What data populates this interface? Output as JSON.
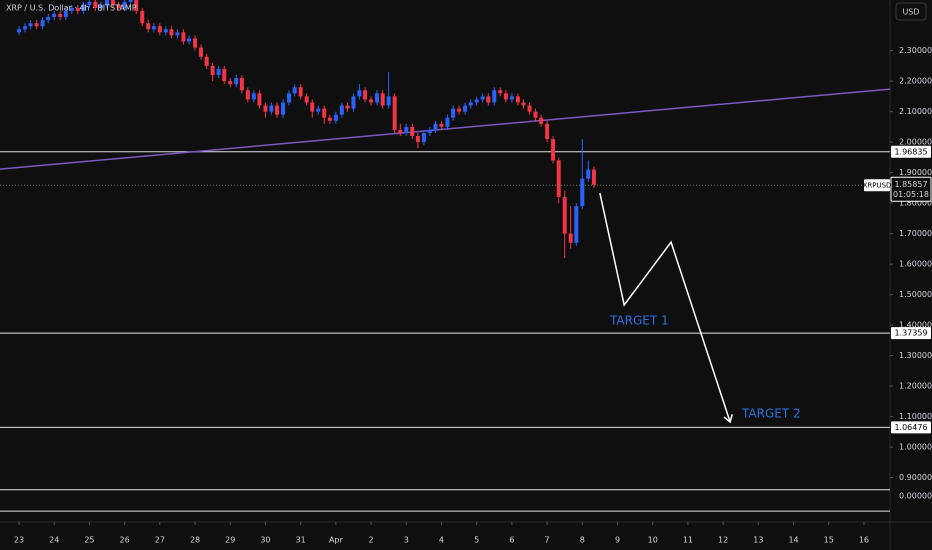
{
  "chart_data": {
    "type": "candlestick",
    "title": "XRP / U.S. Dollar · 4h · BITSTAMP",
    "currency": "USD",
    "xlim": [
      -0.54,
      24.74
    ],
    "xticks": [
      {
        "value": 0,
        "label": "23"
      },
      {
        "value": 1,
        "label": "24"
      },
      {
        "value": 2,
        "label": "25"
      },
      {
        "value": 3,
        "label": "26"
      },
      {
        "value": 4,
        "label": "27"
      },
      {
        "value": 5,
        "label": "28"
      },
      {
        "value": 6,
        "label": "29"
      },
      {
        "value": 7,
        "label": "30"
      },
      {
        "value": 8,
        "label": "31"
      },
      {
        "value": 9,
        "label": "Apr"
      },
      {
        "value": 10,
        "label": "2"
      },
      {
        "value": 11,
        "label": "3"
      },
      {
        "value": 12,
        "label": "4"
      },
      {
        "value": 13,
        "label": "5"
      },
      {
        "value": 14,
        "label": "6"
      },
      {
        "value": 15,
        "label": "7"
      },
      {
        "value": 16,
        "label": "8"
      },
      {
        "value": 17,
        "label": "9"
      },
      {
        "value": 18,
        "label": "10"
      },
      {
        "value": 19,
        "label": "11"
      },
      {
        "value": 20,
        "label": "12"
      },
      {
        "value": 21,
        "label": "13"
      },
      {
        "value": 22,
        "label": "14"
      },
      {
        "value": 23,
        "label": "15"
      },
      {
        "value": 24,
        "label": "16"
      }
    ],
    "ylim": [
      0.761,
      2.466
    ],
    "yticks": [
      {
        "value": 2.3,
        "label": "2.30000"
      },
      {
        "value": 2.2,
        "label": "2.20000"
      },
      {
        "value": 2.1,
        "label": "2.10000"
      },
      {
        "value": 2.0,
        "label": "2.00000"
      },
      {
        "value": 1.9,
        "label": "1.90000"
      },
      {
        "value": 1.8,
        "label": "1.80000"
      },
      {
        "value": 1.7,
        "label": "1.70000"
      },
      {
        "value": 1.6,
        "label": "1.60000"
      },
      {
        "value": 1.5,
        "label": "1.50000"
      },
      {
        "value": 1.4,
        "label": "1.40000"
      },
      {
        "value": 1.3,
        "label": "1.30000"
      },
      {
        "value": 1.2,
        "label": "1.20000"
      },
      {
        "value": 1.1,
        "label": "1.10000"
      },
      {
        "value": 1.0,
        "label": "1.00000"
      },
      {
        "value": 0.9,
        "label": "0.90000"
      }
    ],
    "scale_bottom_label": "0.00000",
    "up_color": "#2962ff",
    "down_color": "#f23645",
    "series": [
      {
        "name": "XRPUSD",
        "last_price": 1.85857,
        "countdown": "01:05:18",
        "x": [
          0,
          0.17,
          0.33,
          0.5,
          0.67,
          0.83,
          1,
          1.17,
          1.33,
          1.5,
          1.67,
          1.83,
          2,
          2.17,
          2.33,
          2.5,
          2.67,
          2.83,
          3,
          3.17,
          3.33,
          3.5,
          3.67,
          3.83,
          4,
          4.17,
          4.33,
          4.5,
          4.67,
          4.83,
          5,
          5.17,
          5.33,
          5.5,
          5.67,
          5.83,
          6,
          6.17,
          6.33,
          6.5,
          6.67,
          6.83,
          7,
          7.17,
          7.33,
          7.5,
          7.67,
          7.83,
          8,
          8.17,
          8.33,
          8.5,
          8.67,
          8.83,
          9,
          9.17,
          9.33,
          9.5,
          9.67,
          9.83,
          10,
          10.17,
          10.33,
          10.5,
          10.67,
          10.83,
          11,
          11.17,
          11.33,
          11.5,
          11.67,
          11.83,
          12,
          12.17,
          12.33,
          12.5,
          12.67,
          12.83,
          13,
          13.17,
          13.33,
          13.5,
          13.67,
          13.83,
          14,
          14.17,
          14.33,
          14.5,
          14.67,
          14.83,
          15,
          15.17,
          15.33,
          15.5,
          15.67,
          15.83,
          16,
          16.17,
          16.33
        ],
        "ohlc": [
          [
            2.36,
            2.38,
            2.35,
            2.37
          ],
          [
            2.37,
            2.39,
            2.36,
            2.38
          ],
          [
            2.38,
            2.4,
            2.37,
            2.39
          ],
          [
            2.39,
            2.4,
            2.37,
            2.38
          ],
          [
            2.38,
            2.41,
            2.37,
            2.4
          ],
          [
            2.4,
            2.42,
            2.39,
            2.41
          ],
          [
            2.41,
            2.43,
            2.4,
            2.42
          ],
          [
            2.42,
            2.43,
            2.4,
            2.41
          ],
          [
            2.41,
            2.44,
            2.4,
            2.43
          ],
          [
            2.43,
            2.45,
            2.42,
            2.44
          ],
          [
            2.44,
            2.45,
            2.42,
            2.43
          ],
          [
            2.43,
            2.46,
            2.42,
            2.45
          ],
          [
            2.45,
            2.47,
            2.44,
            2.46
          ],
          [
            2.46,
            2.47,
            2.43,
            2.44
          ],
          [
            2.44,
            2.46,
            2.43,
            2.45
          ],
          [
            2.45,
            2.48,
            2.44,
            2.47
          ],
          [
            2.47,
            2.48,
            2.44,
            2.45
          ],
          [
            2.45,
            2.46,
            2.43,
            2.44
          ],
          [
            2.44,
            2.47,
            2.43,
            2.46
          ],
          [
            2.46,
            2.48,
            2.45,
            2.47
          ],
          [
            2.47,
            2.48,
            2.42,
            2.43
          ],
          [
            2.43,
            2.44,
            2.38,
            2.39
          ],
          [
            2.39,
            2.4,
            2.36,
            2.37
          ],
          [
            2.37,
            2.39,
            2.36,
            2.38
          ],
          [
            2.38,
            2.39,
            2.35,
            2.36
          ],
          [
            2.36,
            2.38,
            2.35,
            2.37
          ],
          [
            2.37,
            2.38,
            2.34,
            2.35
          ],
          [
            2.35,
            2.37,
            2.34,
            2.36
          ],
          [
            2.36,
            2.37,
            2.32,
            2.33
          ],
          [
            2.33,
            2.35,
            2.32,
            2.34
          ],
          [
            2.34,
            2.35,
            2.3,
            2.31
          ],
          [
            2.31,
            2.32,
            2.27,
            2.28
          ],
          [
            2.28,
            2.29,
            2.24,
            2.25
          ],
          [
            2.25,
            2.26,
            2.2,
            2.22
          ],
          [
            2.22,
            2.25,
            2.21,
            2.24
          ],
          [
            2.24,
            2.25,
            2.19,
            2.2
          ],
          [
            2.2,
            2.21,
            2.18,
            2.19
          ],
          [
            2.19,
            2.22,
            2.18,
            2.21
          ],
          [
            2.21,
            2.22,
            2.16,
            2.17
          ],
          [
            2.17,
            2.18,
            2.13,
            2.14
          ],
          [
            2.14,
            2.17,
            2.13,
            2.16
          ],
          [
            2.16,
            2.17,
            2.11,
            2.12
          ],
          [
            2.12,
            2.13,
            2.08,
            2.1
          ],
          [
            2.1,
            2.13,
            2.09,
            2.12
          ],
          [
            2.12,
            2.13,
            2.08,
            2.09
          ],
          [
            2.09,
            2.14,
            2.08,
            2.13
          ],
          [
            2.13,
            2.17,
            2.12,
            2.16
          ],
          [
            2.16,
            2.19,
            2.15,
            2.18
          ],
          [
            2.18,
            2.19,
            2.14,
            2.15
          ],
          [
            2.15,
            2.16,
            2.12,
            2.13
          ],
          [
            2.13,
            2.14,
            2.08,
            2.1
          ],
          [
            2.1,
            2.12,
            2.09,
            2.11
          ],
          [
            2.11,
            2.12,
            2.06,
            2.08
          ],
          [
            2.08,
            2.09,
            2.06,
            2.07
          ],
          [
            2.07,
            2.1,
            2.06,
            2.09
          ],
          [
            2.09,
            2.13,
            2.08,
            2.12
          ],
          [
            2.12,
            2.13,
            2.1,
            2.11
          ],
          [
            2.11,
            2.16,
            2.1,
            2.15
          ],
          [
            2.15,
            2.19,
            2.14,
            2.17
          ],
          [
            2.17,
            2.18,
            2.13,
            2.14
          ],
          [
            2.14,
            2.15,
            2.12,
            2.13
          ],
          [
            2.13,
            2.17,
            2.12,
            2.16
          ],
          [
            2.16,
            2.17,
            2.11,
            2.12
          ],
          [
            2.12,
            2.23,
            2.11,
            2.15
          ],
          [
            2.15,
            2.16,
            2.03,
            2.04
          ],
          [
            2.04,
            2.06,
            2.02,
            2.03
          ],
          [
            2.03,
            2.06,
            2.02,
            2.05
          ],
          [
            2.05,
            2.06,
            2.01,
            2.02
          ],
          [
            2.02,
            2.03,
            1.98,
            2.0
          ],
          [
            2.0,
            2.04,
            1.99,
            2.03
          ],
          [
            2.03,
            2.05,
            2.02,
            2.04
          ],
          [
            2.04,
            2.07,
            2.03,
            2.06
          ],
          [
            2.06,
            2.07,
            2.04,
            2.05
          ],
          [
            2.05,
            2.09,
            2.04,
            2.08
          ],
          [
            2.08,
            2.12,
            2.07,
            2.11
          ],
          [
            2.11,
            2.12,
            2.09,
            2.1
          ],
          [
            2.1,
            2.13,
            2.09,
            2.12
          ],
          [
            2.12,
            2.14,
            2.11,
            2.13
          ],
          [
            2.13,
            2.15,
            2.12,
            2.14
          ],
          [
            2.14,
            2.16,
            2.13,
            2.15
          ],
          [
            2.15,
            2.16,
            2.12,
            2.13
          ],
          [
            2.13,
            2.18,
            2.12,
            2.17
          ],
          [
            2.17,
            2.18,
            2.15,
            2.16
          ],
          [
            2.16,
            2.17,
            2.13,
            2.14
          ],
          [
            2.14,
            2.16,
            2.13,
            2.15
          ],
          [
            2.15,
            2.16,
            2.12,
            2.13
          ],
          [
            2.13,
            2.14,
            2.11,
            2.12
          ],
          [
            2.12,
            2.13,
            2.09,
            2.1
          ],
          [
            2.1,
            2.11,
            2.07,
            2.08
          ],
          [
            2.08,
            2.09,
            2.05,
            2.06
          ],
          [
            2.06,
            2.07,
            2.0,
            2.01
          ],
          [
            2.01,
            2.02,
            1.93,
            1.94
          ],
          [
            1.94,
            1.95,
            1.8,
            1.82
          ],
          [
            1.82,
            1.84,
            1.62,
            1.7
          ],
          [
            1.7,
            1.79,
            1.65,
            1.67
          ],
          [
            1.67,
            1.8,
            1.66,
            1.79
          ],
          [
            1.79,
            2.01,
            1.78,
            1.88
          ],
          [
            1.88,
            1.94,
            1.87,
            1.91
          ],
          [
            1.91,
            1.92,
            1.85,
            1.86
          ]
        ]
      }
    ],
    "levels": [
      1.96835,
      1.37359,
      1.06476,
      0.86,
      0.79
    ],
    "level_labels": [
      "1.96835",
      "1.37359",
      "1.06476",
      null,
      null
    ],
    "trendline": {
      "x": [
        -0.54,
        24.74
      ],
      "y": [
        1.9115,
        2.1738
      ],
      "color": "#7e57c2"
    },
    "projection": {
      "x": [
        16.5,
        17.19,
        18.52,
        20.2
      ],
      "y": [
        1.833,
        1.466,
        1.672,
        1.082
      ],
      "color": "#ffffff"
    },
    "annotations": [
      {
        "text": "TARGET 1",
        "color": "#2f6fe0"
      },
      {
        "text": "TARGET 2",
        "color": "#2f6fe0"
      }
    ]
  }
}
